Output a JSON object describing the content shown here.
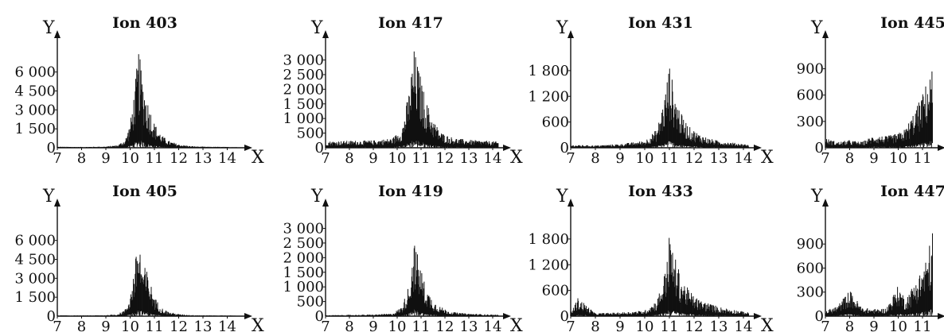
{
  "chart_data": [
    {
      "type": "line",
      "title": "Ion 403",
      "xlabel": "X",
      "ylabel": "Y",
      "xlim": [
        7,
        14.4
      ],
      "ylim": [
        0,
        7300
      ],
      "xticks": [
        {
          "v": 7,
          "label": "7"
        },
        {
          "v": 8,
          "label": "8"
        },
        {
          "v": 9,
          "label": "9"
        },
        {
          "v": 10,
          "label": "10"
        },
        {
          "v": 11,
          "label": "11"
        },
        {
          "v": 12,
          "label": "12"
        },
        {
          "v": 13,
          "label": "13"
        },
        {
          "v": 14,
          "label": "14"
        }
      ],
      "yticks": [
        {
          "v": 0,
          "label": "0"
        },
        {
          "v": 1500,
          "label": "1 500"
        },
        {
          "v": 3000,
          "label": "3 000"
        },
        {
          "v": 4500,
          "label": "4 500"
        },
        {
          "v": 6000,
          "label": "6 000"
        }
      ],
      "series": [
        {
          "x": [
            7.0,
            8.0,
            9.0,
            9.5,
            9.8,
            10.0,
            10.2,
            10.35,
            10.5,
            10.7,
            11.0,
            11.3,
            11.6,
            12.0,
            12.5,
            13.0,
            14.0,
            14.4
          ],
          "y": [
            80,
            60,
            90,
            200,
            600,
            1800,
            4500,
            7200,
            5200,
            3600,
            1800,
            900,
            500,
            250,
            120,
            80,
            60,
            50
          ]
        }
      ]
    },
    {
      "type": "line",
      "title": "Ion 417",
      "xlabel": "X",
      "ylabel": "Y",
      "xlim": [
        7,
        14.3
      ],
      "ylim": [
        0,
        3150
      ],
      "xticks": [
        {
          "v": 7,
          "label": "7"
        },
        {
          "v": 8,
          "label": "8"
        },
        {
          "v": 9,
          "label": "9"
        },
        {
          "v": 10,
          "label": "10"
        },
        {
          "v": 11,
          "label": "11"
        },
        {
          "v": 12,
          "label": "12"
        },
        {
          "v": 13,
          "label": "13"
        },
        {
          "v": 14,
          "label": "14"
        }
      ],
      "yticks": [
        {
          "v": 0,
          "label": "0"
        },
        {
          "v": 500,
          "label": "500"
        },
        {
          "v": 1000,
          "label": "1 000"
        },
        {
          "v": 1500,
          "label": "1 500"
        },
        {
          "v": 2000,
          "label": "2 000"
        },
        {
          "v": 2500,
          "label": "2 500"
        },
        {
          "v": 3000,
          "label": "3 000"
        }
      ],
      "series": [
        {
          "x": [
            7.0,
            8.0,
            9.0,
            9.8,
            10.2,
            10.5,
            10.7,
            10.9,
            11.2,
            11.5,
            11.8,
            12.2,
            12.6,
            13.0,
            14.0,
            14.3
          ],
          "y": [
            200,
            220,
            230,
            300,
            600,
            1800,
            3100,
            2500,
            1500,
            900,
            500,
            350,
            280,
            250,
            200,
            200
          ]
        }
      ]
    },
    {
      "type": "line",
      "title": "Ion 431",
      "xlabel": "X",
      "ylabel": "Y",
      "xlim": [
        7,
        14.4
      ],
      "ylim": [
        0,
        2150
      ],
      "xticks": [
        {
          "v": 7,
          "label": "7"
        },
        {
          "v": 8,
          "label": "8"
        },
        {
          "v": 9,
          "label": "9"
        },
        {
          "v": 10,
          "label": "10"
        },
        {
          "v": 11,
          "label": "11"
        },
        {
          "v": 12,
          "label": "12"
        },
        {
          "v": 13,
          "label": "13"
        },
        {
          "v": 14,
          "label": "14"
        }
      ],
      "yticks": [
        {
          "v": 0,
          "label": "0"
        },
        {
          "v": 600,
          "label": "600"
        },
        {
          "v": 1200,
          "label": "1 200"
        },
        {
          "v": 1800,
          "label": "1 800"
        }
      ],
      "series": [
        {
          "x": [
            7.0,
            8.0,
            9.0,
            10.0,
            10.5,
            10.8,
            11.0,
            11.2,
            11.5,
            11.8,
            12.2,
            12.6,
            13.0,
            14.0,
            14.4
          ],
          "y": [
            60,
            50,
            80,
            150,
            400,
            1100,
            1800,
            1200,
            700,
            450,
            300,
            200,
            150,
            80,
            60
          ]
        }
      ]
    },
    {
      "type": "line",
      "title": "Ion 445",
      "xlabel": "",
      "ylabel": "Y",
      "xlim": [
        7,
        11.8
      ],
      "ylim": [
        0,
        1050
      ],
      "xticks": [
        {
          "v": 7,
          "label": "7"
        },
        {
          "v": 8,
          "label": "8"
        },
        {
          "v": 9,
          "label": "9"
        },
        {
          "v": 10,
          "label": "10"
        },
        {
          "v": 11,
          "label": "11"
        }
      ],
      "yticks": [
        {
          "v": 0,
          "label": "0"
        },
        {
          "v": 300,
          "label": "300"
        },
        {
          "v": 600,
          "label": "600"
        },
        {
          "v": 900,
          "label": "900"
        }
      ],
      "series": [
        {
          "x": [
            7.0,
            7.5,
            8.0,
            8.5,
            9.0,
            9.5,
            10.0,
            10.3,
            10.6,
            10.9,
            11.2,
            11.5,
            11.8
          ],
          "y": [
            100,
            60,
            80,
            60,
            130,
            120,
            150,
            200,
            350,
            500,
            700,
            880,
            800
          ]
        }
      ]
    },
    {
      "type": "line",
      "title": "Ion 405",
      "xlabel": "X",
      "ylabel": "Y",
      "xlim": [
        7,
        14.4
      ],
      "ylim": [
        0,
        7300
      ],
      "xticks": [
        {
          "v": 7,
          "label": "7"
        },
        {
          "v": 8,
          "label": "8"
        },
        {
          "v": 9,
          "label": "9"
        },
        {
          "v": 10,
          "label": "10"
        },
        {
          "v": 11,
          "label": "11"
        },
        {
          "v": 12,
          "label": "12"
        },
        {
          "v": 13,
          "label": "13"
        },
        {
          "v": 14,
          "label": "14"
        }
      ],
      "yticks": [
        {
          "v": 0,
          "label": "0"
        },
        {
          "v": 1500,
          "label": "1 500"
        },
        {
          "v": 3000,
          "label": "3 000"
        },
        {
          "v": 4500,
          "label": "4 500"
        },
        {
          "v": 6000,
          "label": "6 000"
        }
      ],
      "series": [
        {
          "x": [
            7.0,
            8.0,
            9.0,
            9.5,
            9.8,
            10.0,
            10.2,
            10.35,
            10.5,
            10.7,
            11.0,
            11.3,
            11.6,
            12.0,
            12.5,
            13.0,
            14.0,
            14.4
          ],
          "y": [
            60,
            50,
            70,
            150,
            500,
            1500,
            3800,
            5900,
            3800,
            3300,
            1400,
            600,
            300,
            150,
            80,
            60,
            50,
            40
          ]
        }
      ]
    },
    {
      "type": "line",
      "title": "Ion 419",
      "xlabel": "X",
      "ylabel": "Y",
      "xlim": [
        7,
        14.3
      ],
      "ylim": [
        0,
        3150
      ],
      "xticks": [
        {
          "v": 7,
          "label": "7"
        },
        {
          "v": 8,
          "label": "8"
        },
        {
          "v": 9,
          "label": "9"
        },
        {
          "v": 10,
          "label": "10"
        },
        {
          "v": 11,
          "label": "11"
        },
        {
          "v": 12,
          "label": "12"
        },
        {
          "v": 13,
          "label": "13"
        },
        {
          "v": 14,
          "label": "14"
        }
      ],
      "yticks": [
        {
          "v": 0,
          "label": "0"
        },
        {
          "v": 500,
          "label": "500"
        },
        {
          "v": 1000,
          "label": "1 000"
        },
        {
          "v": 1500,
          "label": "1 500"
        },
        {
          "v": 2000,
          "label": "2 000"
        },
        {
          "v": 2500,
          "label": "2 500"
        },
        {
          "v": 3000,
          "label": "3 000"
        }
      ],
      "series": [
        {
          "x": [
            7.0,
            8.0,
            9.0,
            9.8,
            10.2,
            10.5,
            10.7,
            10.9,
            11.2,
            11.5,
            11.8,
            12.2,
            12.6,
            13.0,
            14.0,
            14.3
          ],
          "y": [
            30,
            40,
            50,
            80,
            300,
            1000,
            2400,
            1800,
            900,
            500,
            300,
            150,
            100,
            80,
            50,
            40
          ]
        }
      ]
    },
    {
      "type": "line",
      "title": "Ion 433",
      "xlabel": "X",
      "ylabel": "Y",
      "xlim": [
        7,
        14.4
      ],
      "ylim": [
        0,
        2150
      ],
      "xticks": [
        {
          "v": 7,
          "label": "7"
        },
        {
          "v": 8,
          "label": "8"
        },
        {
          "v": 9,
          "label": "9"
        },
        {
          "v": 10,
          "label": "10"
        },
        {
          "v": 11,
          "label": "11"
        },
        {
          "v": 12,
          "label": "12"
        },
        {
          "v": 13,
          "label": "13"
        },
        {
          "v": 14,
          "label": "14"
        }
      ],
      "yticks": [
        {
          "v": 0,
          "label": "0"
        },
        {
          "v": 600,
          "label": "600"
        },
        {
          "v": 1200,
          "label": "1 200"
        },
        {
          "v": 1800,
          "label": "1 800"
        }
      ],
      "series": [
        {
          "x": [
            7.0,
            7.3,
            8.0,
            9.0,
            10.0,
            10.5,
            10.8,
            11.0,
            11.2,
            11.5,
            11.8,
            12.2,
            12.6,
            13.0,
            14.0,
            14.4
          ],
          "y": [
            80,
            400,
            60,
            80,
            120,
            350,
            900,
            1750,
            1300,
            800,
            550,
            350,
            280,
            200,
            100,
            60
          ]
        }
      ]
    },
    {
      "type": "line",
      "title": "Ion 447",
      "xlabel": "",
      "ylabel": "Y",
      "xlim": [
        7,
        11.8
      ],
      "ylim": [
        0,
        1150
      ],
      "xticks": [
        {
          "v": 7,
          "label": "7"
        },
        {
          "v": 8,
          "label": "8"
        },
        {
          "v": 9,
          "label": "9"
        },
        {
          "v": 10,
          "label": "10"
        },
        {
          "v": 11,
          "label": "11"
        }
      ],
      "yticks": [
        {
          "v": 0,
          "label": "0"
        },
        {
          "v": 300,
          "label": "300"
        },
        {
          "v": 600,
          "label": "600"
        },
        {
          "v": 900,
          "label": "900"
        }
      ],
      "series": [
        {
          "x": [
            7.0,
            7.5,
            8.0,
            8.5,
            9.0,
            9.5,
            10.0,
            10.3,
            10.6,
            10.9,
            11.2,
            11.5,
            11.8
          ],
          "y": [
            60,
            120,
            300,
            100,
            80,
            90,
            350,
            200,
            350,
            500,
            700,
            1100,
            900
          ]
        }
      ]
    }
  ]
}
